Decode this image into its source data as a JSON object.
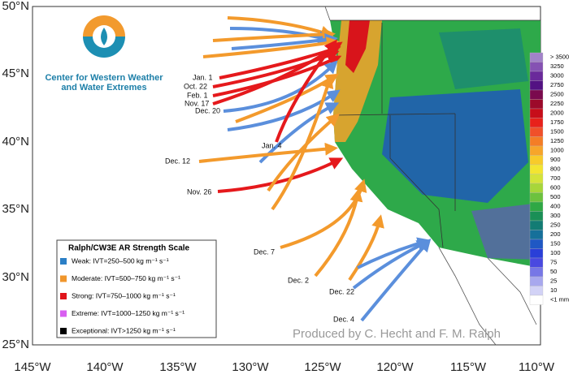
{
  "logo": {
    "line1": "Center for Western Weather",
    "line2": "and Water Extremes"
  },
  "latitude_labels": [
    "50°N",
    "45°N",
    "40°N",
    "35°N",
    "30°N",
    "25°N"
  ],
  "longitude_labels": [
    "145°W",
    "140°W",
    "135°W",
    "130°W",
    "125°W",
    "120°W",
    "115°W",
    "110°W"
  ],
  "events": [
    "Jan. 1",
    "Oct. 22",
    "Feb. 1",
    "Nov. 17",
    "Dec. 20",
    "Jan. 4",
    "Dec. 12",
    "Nov. 26",
    "Dec. 7",
    "Dec. 2",
    "Dec. 22",
    "Dec. 4"
  ],
  "legend": {
    "title": "Ralph/CW3E AR Strength Scale",
    "items": [
      {
        "label": "Weak: IVT=250–500 kg m⁻¹ s⁻¹",
        "color": "#2b7fc6"
      },
      {
        "label": "Moderate: IVT=500–750 kg m⁻¹ s⁻¹",
        "color": "#f0962c"
      },
      {
        "label": "Strong: IVT=750–1000 kg m⁻¹ s⁻¹",
        "color": "#e0141b"
      },
      {
        "label": "Extreme: IVT=1000–1250 kg m⁻¹ s⁻¹",
        "color": "#d85ef0"
      },
      {
        "label": "Exceptional: IVT>1250 kg m⁻¹ s⁻¹",
        "color": "#000000"
      }
    ]
  },
  "colorbar": {
    "labels": [
      "> 3500",
      "3250",
      "3000",
      "2750",
      "2500",
      "2250",
      "2000",
      "1750",
      "1500",
      "1250",
      "1000",
      "900",
      "800",
      "700",
      "600",
      "500",
      "400",
      "300",
      "250",
      "200",
      "150",
      "100",
      "75",
      "50",
      "25",
      "10",
      "<1 mm"
    ],
    "colors": [
      "#a283c9",
      "#8552b3",
      "#6a2a9b",
      "#531283",
      "#7a0a4e",
      "#9c0a2a",
      "#c70d1a",
      "#e8211b",
      "#f0502a",
      "#f47d26",
      "#f7a52a",
      "#f8cb2a",
      "#f3e531",
      "#d4e33a",
      "#a7d63a",
      "#6cc23e",
      "#2fa845",
      "#1a8f56",
      "#137c74",
      "#16709a",
      "#1f58c4",
      "#2a3fd8",
      "#4949e0",
      "#7777e6",
      "#a8a8ee",
      "#d2d2f6",
      "#ffffff"
    ]
  },
  "credit": "Produced by C. Hecht and F. M. Ralph"
}
